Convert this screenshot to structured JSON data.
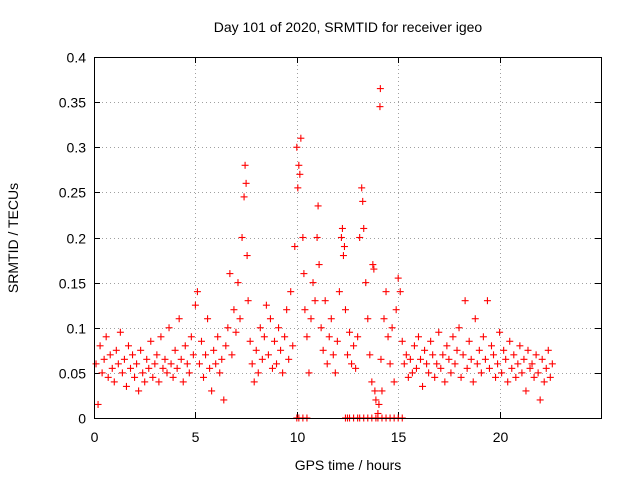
{
  "chart_data": {
    "type": "scatter",
    "title": "Day 101 of 2020, SRMTID for receiver igeo",
    "xlabel": "GPS time / hours",
    "ylabel": "SRMTID / TECUs",
    "xlim": [
      0,
      25
    ],
    "ylim": [
      0,
      0.4
    ],
    "xticks": [
      0,
      5,
      10,
      15,
      20
    ],
    "yticks": [
      0,
      0.05,
      0.1,
      0.15,
      0.2,
      0.25,
      0.3,
      0.35,
      0.4
    ],
    "ytick_labels": [
      "0",
      "0.05",
      "0.1",
      "0.15",
      "0.2",
      "0.25",
      "0.3",
      "0.35",
      "0.4"
    ],
    "grid": true,
    "marker": "+",
    "marker_color": "#ff0000",
    "series": [
      {
        "name": "SRMTID",
        "points": [
          [
            0.1,
            0.06
          ],
          [
            0.2,
            0.015
          ],
          [
            0.3,
            0.08
          ],
          [
            0.4,
            0.05
          ],
          [
            0.5,
            0.065
          ],
          [
            0.6,
            0.09
          ],
          [
            0.7,
            0.045
          ],
          [
            0.8,
            0.07
          ],
          [
            0.9,
            0.055
          ],
          [
            1.0,
            0.04
          ],
          [
            1.1,
            0.075
          ],
          [
            1.2,
            0.06
          ],
          [
            1.3,
            0.095
          ],
          [
            1.4,
            0.05
          ],
          [
            1.5,
            0.065
          ],
          [
            1.6,
            0.035
          ],
          [
            1.7,
            0.08
          ],
          [
            1.8,
            0.055
          ],
          [
            1.9,
            0.07
          ],
          [
            2.0,
            0.045
          ],
          [
            2.1,
            0.06
          ],
          [
            2.2,
            0.03
          ],
          [
            2.3,
            0.075
          ],
          [
            2.4,
            0.05
          ],
          [
            2.5,
            0.04
          ],
          [
            2.6,
            0.065
          ],
          [
            2.7,
            0.055
          ],
          [
            2.8,
            0.085
          ],
          [
            2.9,
            0.045
          ],
          [
            3.0,
            0.06
          ],
          [
            3.1,
            0.07
          ],
          [
            3.2,
            0.04
          ],
          [
            3.3,
            0.09
          ],
          [
            3.4,
            0.055
          ],
          [
            3.5,
            0.065
          ],
          [
            3.6,
            0.05
          ],
          [
            3.7,
            0.1
          ],
          [
            3.8,
            0.06
          ],
          [
            3.9,
            0.045
          ],
          [
            4.0,
            0.075
          ],
          [
            4.1,
            0.055
          ],
          [
            4.2,
            0.11
          ],
          [
            4.3,
            0.065
          ],
          [
            4.4,
            0.04
          ],
          [
            4.5,
            0.08
          ],
          [
            4.6,
            0.06
          ],
          [
            4.7,
            0.05
          ],
          [
            4.8,
            0.09
          ],
          [
            4.9,
            0.07
          ],
          [
            5.0,
            0.125
          ],
          [
            5.1,
            0.14
          ],
          [
            5.2,
            0.06
          ],
          [
            5.3,
            0.085
          ],
          [
            5.4,
            0.045
          ],
          [
            5.5,
            0.07
          ],
          [
            5.6,
            0.11
          ],
          [
            5.7,
            0.055
          ],
          [
            5.8,
            0.03
          ],
          [
            5.9,
            0.075
          ],
          [
            6.0,
            0.06
          ],
          [
            6.1,
            0.09
          ],
          [
            6.2,
            0.05
          ],
          [
            6.3,
            0.065
          ],
          [
            6.4,
            0.02
          ],
          [
            6.5,
            0.08
          ],
          [
            6.6,
            0.1
          ],
          [
            6.7,
            0.16
          ],
          [
            6.8,
            0.07
          ],
          [
            6.9,
            0.12
          ],
          [
            7.0,
            0.095
          ],
          [
            7.1,
            0.15
          ],
          [
            7.2,
            0.11
          ],
          [
            7.3,
            0.2
          ],
          [
            7.4,
            0.245
          ],
          [
            7.45,
            0.28
          ],
          [
            7.5,
            0.26
          ],
          [
            7.55,
            0.18
          ],
          [
            7.6,
            0.13
          ],
          [
            7.7,
            0.085
          ],
          [
            7.8,
            0.06
          ],
          [
            7.9,
            0.04
          ],
          [
            8.0,
            0.075
          ],
          [
            8.1,
            0.05
          ],
          [
            8.2,
            0.1
          ],
          [
            8.3,
            0.065
          ],
          [
            8.4,
            0.09
          ],
          [
            8.5,
            0.125
          ],
          [
            8.6,
            0.07
          ],
          [
            8.7,
            0.11
          ],
          [
            8.8,
            0.055
          ],
          [
            8.9,
            0.085
          ],
          [
            9.0,
            0.06
          ],
          [
            9.1,
            0.1
          ],
          [
            9.2,
            0.075
          ],
          [
            9.3,
            0.05
          ],
          [
            9.4,
            0.09
          ],
          [
            9.5,
            0.12
          ],
          [
            9.6,
            0.065
          ],
          [
            9.7,
            0.14
          ],
          [
            9.8,
            0.08
          ],
          [
            9.9,
            0.19
          ],
          [
            10.0,
            0.3
          ],
          [
            10.05,
            0.255
          ],
          [
            10.1,
            0.28
          ],
          [
            10.15,
            0.27
          ],
          [
            10.2,
            0.31
          ],
          [
            10.3,
            0.2
          ],
          [
            10.35,
            0.16
          ],
          [
            10.4,
            0.12
          ],
          [
            10.5,
            0.09
          ],
          [
            10.6,
            0.05
          ],
          [
            10.7,
            0.11
          ],
          [
            10.8,
            0.15
          ],
          [
            10.9,
            0.13
          ],
          [
            11.0,
            0.2
          ],
          [
            11.05,
            0.235
          ],
          [
            11.1,
            0.17
          ],
          [
            11.2,
            0.1
          ],
          [
            11.3,
            0.075
          ],
          [
            11.4,
            0.13
          ],
          [
            11.5,
            0.06
          ],
          [
            11.6,
            0.09
          ],
          [
            11.7,
            0.11
          ],
          [
            11.8,
            0.07
          ],
          [
            11.9,
            0.05
          ],
          [
            12.0,
            0.085
          ],
          [
            12.1,
            0.14
          ],
          [
            12.2,
            0.2
          ],
          [
            12.25,
            0.21
          ],
          [
            12.3,
            0.18
          ],
          [
            12.35,
            0.19
          ],
          [
            12.4,
            0.12
          ],
          [
            12.5,
            0.07
          ],
          [
            12.6,
            0.095
          ],
          [
            12.7,
            0.06
          ],
          [
            12.8,
            0.08
          ],
          [
            12.9,
            0.055
          ],
          [
            13.0,
            0.09
          ],
          [
            13.1,
            0.2
          ],
          [
            13.2,
            0.255
          ],
          [
            13.25,
            0.24
          ],
          [
            13.3,
            0.21
          ],
          [
            13.4,
            0.15
          ],
          [
            13.5,
            0.11
          ],
          [
            13.6,
            0.07
          ],
          [
            13.7,
            0.04
          ],
          [
            13.75,
            0.17
          ],
          [
            13.8,
            0.165
          ],
          [
            13.85,
            0.03
          ],
          [
            13.9,
            0.02
          ],
          [
            14.0,
            0.005
          ],
          [
            14.05,
            0.015
          ],
          [
            14.1,
            0.345
          ],
          [
            14.12,
            0.365
          ],
          [
            14.15,
            0.065
          ],
          [
            14.2,
            0.03
          ],
          [
            14.3,
            0.11
          ],
          [
            14.4,
            0.14
          ],
          [
            14.5,
            0.09
          ],
          [
            14.6,
            0.06
          ],
          [
            14.7,
            0.1
          ],
          [
            14.8,
            0.04
          ],
          [
            14.9,
            0.12
          ],
          [
            15.0,
            0.155
          ],
          [
            15.1,
            0.14
          ],
          [
            15.2,
            0.085
          ],
          [
            15.3,
            0.06
          ],
          [
            15.4,
            0.07
          ],
          [
            15.5,
            0.045
          ],
          [
            15.6,
            0.065
          ],
          [
            15.7,
            0.05
          ],
          [
            15.8,
            0.08
          ],
          [
            15.9,
            0.055
          ],
          [
            16.0,
            0.09
          ],
          [
            16.1,
            0.065
          ],
          [
            16.2,
            0.035
          ],
          [
            16.3,
            0.075
          ],
          [
            16.4,
            0.06
          ],
          [
            16.5,
            0.05
          ],
          [
            16.6,
            0.085
          ],
          [
            16.7,
            0.07
          ],
          [
            16.8,
            0.045
          ],
          [
            16.9,
            0.06
          ],
          [
            17.0,
            0.095
          ],
          [
            17.1,
            0.055
          ],
          [
            17.2,
            0.07
          ],
          [
            17.3,
            0.04
          ],
          [
            17.4,
            0.08
          ],
          [
            17.5,
            0.065
          ],
          [
            17.6,
            0.05
          ],
          [
            17.7,
            0.09
          ],
          [
            17.8,
            0.06
          ],
          [
            17.9,
            0.075
          ],
          [
            18.0,
            0.1
          ],
          [
            18.1,
            0.045
          ],
          [
            18.2,
            0.07
          ],
          [
            18.3,
            0.13
          ],
          [
            18.4,
            0.055
          ],
          [
            18.5,
            0.085
          ],
          [
            18.6,
            0.065
          ],
          [
            18.7,
            0.04
          ],
          [
            18.8,
            0.11
          ],
          [
            18.9,
            0.06
          ],
          [
            19.0,
            0.075
          ],
          [
            19.1,
            0.05
          ],
          [
            19.2,
            0.09
          ],
          [
            19.3,
            0.065
          ],
          [
            19.4,
            0.13
          ],
          [
            19.5,
            0.055
          ],
          [
            19.6,
            0.08
          ],
          [
            19.7,
            0.07
          ],
          [
            19.8,
            0.045
          ],
          [
            19.9,
            0.06
          ],
          [
            20.0,
            0.095
          ],
          [
            20.1,
            0.05
          ],
          [
            20.2,
            0.075
          ],
          [
            20.3,
            0.065
          ],
          [
            20.4,
            0.04
          ],
          [
            20.5,
            0.085
          ],
          [
            20.6,
            0.055
          ],
          [
            20.7,
            0.07
          ],
          [
            20.8,
            0.045
          ],
          [
            20.9,
            0.06
          ],
          [
            21.0,
            0.08
          ],
          [
            21.1,
            0.05
          ],
          [
            21.2,
            0.065
          ],
          [
            21.3,
            0.03
          ],
          [
            21.4,
            0.075
          ],
          [
            21.5,
            0.055
          ],
          [
            21.6,
            0.06
          ],
          [
            21.7,
            0.045
          ],
          [
            21.8,
            0.07
          ],
          [
            21.9,
            0.05
          ],
          [
            22.0,
            0.02
          ],
          [
            22.1,
            0.065
          ],
          [
            22.2,
            0.04
          ],
          [
            22.3,
            0.055
          ],
          [
            22.4,
            0.075
          ],
          [
            22.5,
            0.045
          ],
          [
            22.6,
            0.06
          ]
        ]
      }
    ],
    "baseline_zero_points": [
      10.0,
      10.1,
      10.3,
      10.5,
      12.4,
      12.5,
      12.6,
      12.8,
      13.0,
      13.1,
      13.3,
      13.5,
      13.7,
      13.9,
      14.0,
      14.2,
      14.4,
      14.6,
      14.8,
      15.0,
      15.2
    ]
  }
}
